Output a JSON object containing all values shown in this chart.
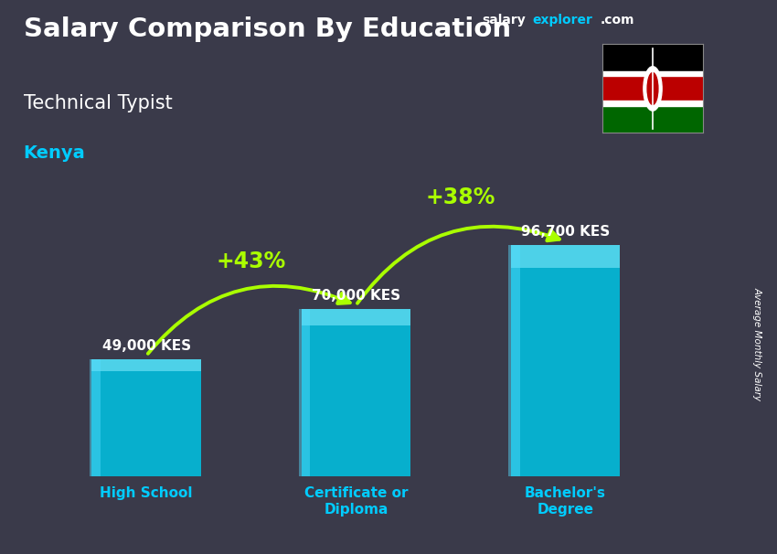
{
  "title_line1": "Salary Comparison By Education",
  "subtitle": "Technical Typist",
  "country": "Kenya",
  "watermark_salary": "salary",
  "watermark_explorer": "explorer",
  "watermark_com": ".com",
  "ylabel": "Average Monthly Salary",
  "categories": [
    "High School",
    "Certificate or\nDiploma",
    "Bachelor's\nDegree"
  ],
  "values": [
    49000,
    70000,
    96700
  ],
  "value_labels": [
    "49,000 KES",
    "70,000 KES",
    "96,700 KES"
  ],
  "pct_labels": [
    "+43%",
    "+38%"
  ],
  "pct_color": "#aaff00",
  "title_color": "#ffffff",
  "subtitle_color": "#ffffff",
  "country_color": "#00ccff",
  "cat_color": "#00ccff",
  "bar_positions": [
    1,
    2,
    3
  ],
  "bar_width": 0.52,
  "ylim_max": 125000,
  "bg_color": "#3a3a4a"
}
